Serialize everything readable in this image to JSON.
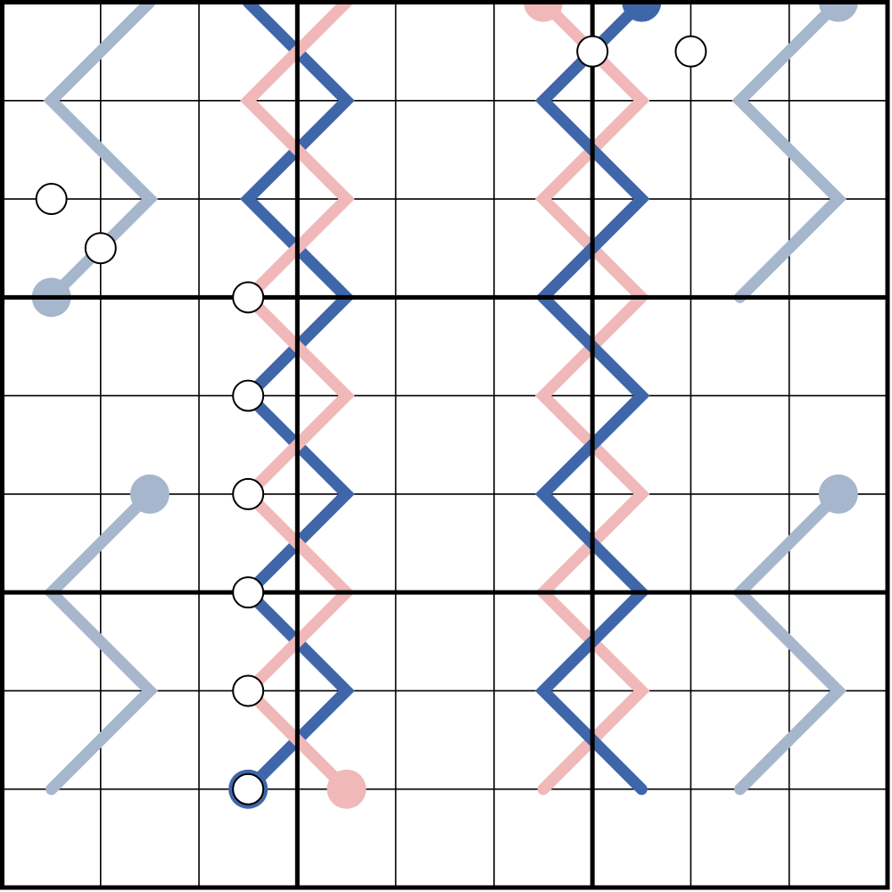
{
  "puzzle": {
    "grid": {
      "rows": 9,
      "cols": 9,
      "box_rows": 3,
      "box_cols": 3
    },
    "colors": {
      "grid_line": "#000000",
      "blue_line": "#4066aa",
      "pink_line": "#f0b8b8",
      "gray_line": "#a6b6cc",
      "dot_fill": "#ffffff",
      "dot_stroke": "#000000"
    },
    "lines": [
      {
        "name": "blue-thermo-left",
        "color": "blue_line",
        "bulb": true,
        "points": [
          [
            8,
            2.5
          ],
          [
            7,
            3.5
          ],
          [
            6,
            2.5
          ],
          [
            5,
            3.5
          ],
          [
            4,
            2.5
          ],
          [
            3,
            3.5
          ],
          [
            2,
            2.5
          ],
          [
            1,
            3.5
          ],
          [
            0,
            2.5
          ]
        ]
      },
      {
        "name": "pink-thermo-left",
        "color": "pink_line",
        "bulb": true,
        "points": [
          [
            8,
            3.5
          ],
          [
            7,
            2.5
          ],
          [
            6,
            3.5
          ],
          [
            5,
            2.5
          ],
          [
            4,
            3.5
          ],
          [
            3,
            2.5
          ],
          [
            2,
            3.5
          ],
          [
            1,
            2.5
          ],
          [
            0,
            3.5
          ]
        ]
      },
      {
        "name": "pink-thermo-right",
        "color": "pink_line",
        "bulb": true,
        "points": [
          [
            0,
            5.5
          ],
          [
            1,
            6.5
          ],
          [
            2,
            5.5
          ],
          [
            3,
            6.5
          ],
          [
            4,
            5.5
          ],
          [
            5,
            6.5
          ],
          [
            6,
            5.5
          ],
          [
            7,
            6.5
          ],
          [
            8,
            5.5
          ]
        ]
      },
      {
        "name": "blue-thermo-right",
        "color": "blue_line",
        "bulb": true,
        "points": [
          [
            0,
            6.5
          ],
          [
            1,
            5.5
          ],
          [
            2,
            6.5
          ],
          [
            3,
            5.5
          ],
          [
            4,
            6.5
          ],
          [
            5,
            5.5
          ],
          [
            6,
            6.5
          ],
          [
            7,
            5.5
          ],
          [
            8,
            6.5
          ]
        ]
      },
      {
        "name": "gray-thermo-top-left",
        "color": "gray_line",
        "bulb": true,
        "points": [
          [
            3,
            0.5
          ],
          [
            2,
            1.5
          ],
          [
            1,
            0.5
          ],
          [
            0,
            1.5
          ]
        ]
      },
      {
        "name": "gray-thermo-top-right",
        "color": "gray_line",
        "bulb": true,
        "points": [
          [
            0,
            8.5
          ],
          [
            1,
            7.5
          ],
          [
            2,
            8.5
          ],
          [
            3,
            7.5
          ]
        ]
      },
      {
        "name": "gray-thermo-bottom-left",
        "color": "gray_line",
        "bulb": true,
        "points": [
          [
            5,
            1.5
          ],
          [
            6,
            0.5
          ],
          [
            7,
            1.5
          ],
          [
            8,
            0.5
          ]
        ]
      },
      {
        "name": "gray-thermo-bottom-right",
        "color": "gray_line",
        "bulb": true,
        "points": [
          [
            5,
            8.5
          ],
          [
            6,
            7.5
          ],
          [
            7,
            8.5
          ],
          [
            8,
            7.5
          ]
        ]
      }
    ],
    "dots": [
      [
        0.5,
        6.0
      ],
      [
        0.5,
        7.0
      ],
      [
        2.0,
        0.5
      ],
      [
        2.5,
        1.0
      ],
      [
        3.0,
        2.5
      ],
      [
        4.0,
        2.5
      ],
      [
        5.0,
        2.5
      ],
      [
        6.0,
        2.5
      ],
      [
        7.0,
        2.5
      ],
      [
        8.0,
        2.5
      ]
    ]
  }
}
